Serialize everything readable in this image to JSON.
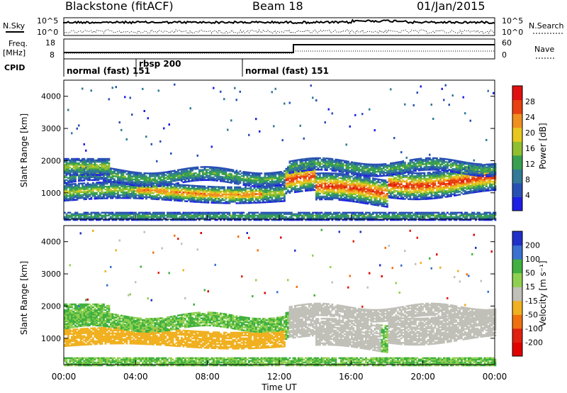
{
  "header": {
    "station": "Blackstone (fitACF)",
    "beam": "Beam 18",
    "date": "01/Jan/2015"
  },
  "panels": {
    "nsky_label": "N.Sky",
    "nsky_ticks": [
      "10^5",
      "10^0"
    ],
    "nsearch_label": "N.Search",
    "nsearch_ticks": [
      "10^5",
      "10^0"
    ],
    "freq_label_1": "Freq.",
    "freq_label_2": "[MHz]",
    "freq_ticks": [
      "18",
      "8"
    ],
    "nave_label": "Nave",
    "nave_ticks": [
      "60",
      "0"
    ],
    "cpid_label": "CPID",
    "cpid_segments": [
      {
        "label": "normal (fast) 151",
        "start_hour": 0,
        "end_hour": 4
      },
      {
        "label": "rbsp 200",
        "start_hour": 4,
        "end_hour": 10
      },
      {
        "label": "normal (fast) 151",
        "start_hour": 10,
        "end_hour": 24
      }
    ]
  },
  "chart_data": [
    {
      "type": "heatmap",
      "name": "power",
      "ylabel": "Slant Range [km]",
      "xlabel": "",
      "x_range_hours": [
        0,
        24
      ],
      "ylim": [
        180,
        4500
      ],
      "yticks": [
        "1000",
        "2000",
        "3000",
        "4000"
      ],
      "colorbar_label": "Power [dB]",
      "colorbar_ticks": [
        "28",
        "24",
        "20",
        "16",
        "12",
        "8",
        "4"
      ],
      "colors": [
        "#1e1ee6",
        "#2850b4",
        "#327a96",
        "#38a050",
        "#90c030",
        "#e8c820",
        "#f09020",
        "#e84010",
        "#e01010"
      ],
      "bands": [
        {
          "start": 0.2,
          "end": 12.2,
          "center": 1000,
          "width": 300,
          "level": 6
        },
        {
          "start": 12.5,
          "end": 24,
          "center": 1400,
          "width": 400,
          "level": 7
        },
        {
          "start": 0,
          "end": 2,
          "center": 1800,
          "width": 250,
          "level": 4
        }
      ]
    },
    {
      "type": "heatmap",
      "name": "velocity",
      "ylabel": "Slant Range [km]",
      "xlabel": "Time UT",
      "x_range_hours": [
        0,
        24
      ],
      "ylim": [
        180,
        4500
      ],
      "yticks": [
        "1000",
        "2000",
        "3000",
        "4000"
      ],
      "xticks": [
        "00:00",
        "04:00",
        "08:00",
        "12:00",
        "16:00",
        "20:00",
        "00:00"
      ],
      "colorbar_label": "Velocity [m s⁻¹]",
      "colorbar_ticks": [
        "200",
        "100",
        "50",
        "15",
        "-15",
        "-50",
        "-100",
        "-200"
      ],
      "colors": [
        "#2030c8",
        "#3a70d0",
        "#40b040",
        "#90d050",
        "#c0c0b8",
        "#f0b020",
        "#f07010",
        "#e02010",
        "#e00000"
      ]
    }
  ]
}
